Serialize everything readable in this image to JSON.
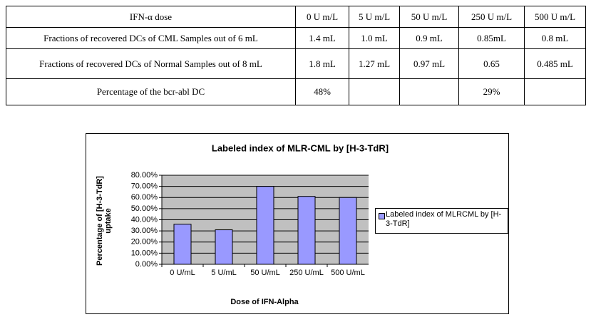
{
  "table": {
    "rows": [
      [
        "IFN-α dose",
        "0 U m/L",
        "5 U m/L",
        "50 U m/L",
        "250 U m/L",
        "500 U m/L"
      ],
      [
        "Fractions of recovered DCs of CML   Samples out of 6 mL",
        "1.4 mL",
        "1.0 mL",
        "0.9 mL",
        "0.85mL",
        "0.8 mL"
      ],
      [
        "Fractions of recovered DCs of Normal   Samples out of 8 mL",
        "1.8 mL",
        "1.27 mL",
        "0.97 mL",
        "0.65",
        "0.485 mL"
      ],
      [
        "Percentage of the bcr-abl DC",
        "48%",
        null,
        null,
        "29%",
        null
      ]
    ]
  },
  "chart_data": {
    "type": "bar",
    "title": "Labeled index of MLR-CML by [H-3-TdR]",
    "y_label": "Percentage of [H-3-TdR] uptake",
    "x_label": "Dose of IFN-Alpha",
    "categories": [
      "0 U/mL",
      "5 U/mL",
      "50 U/mL",
      "250 U/mL",
      "500 U/mL"
    ],
    "series": [
      {
        "name": "Labeled index of MLRCML by [H-3-TdR]",
        "color": "#9999ff",
        "values": [
          36,
          31,
          70,
          61,
          60
        ]
      }
    ],
    "ylim": [
      0,
      80
    ],
    "yticks": [
      {
        "value": 0,
        "label": "0.00%"
      },
      {
        "value": 10,
        "label": "10.00%"
      },
      {
        "value": 20,
        "label": "20.00%"
      },
      {
        "value": 30,
        "label": "30.00%"
      },
      {
        "value": 40,
        "label": "40.00%"
      },
      {
        "value": 50,
        "label": "50.00%"
      },
      {
        "value": 60,
        "label": "60.00%"
      },
      {
        "value": 70,
        "label": "70.00%"
      },
      {
        "value": 80,
        "label": "80.00%"
      }
    ],
    "grid": true
  }
}
